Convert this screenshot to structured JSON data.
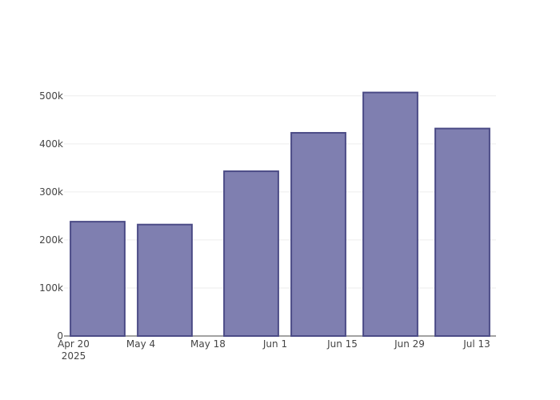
{
  "chart_data": {
    "type": "bar",
    "x": [
      "2025-04-25",
      "2025-05-09",
      "2025-05-27",
      "2025-06-10",
      "2025-06-25",
      "2025-07-10"
    ],
    "values": [
      238000,
      232000,
      343000,
      423000,
      507000,
      432000
    ],
    "color": "#7f7fb0",
    "edge_color": "#4b4b86",
    "xlim": [
      "2025-04-18",
      "2025-07-17"
    ],
    "xticks": [
      {
        "value": "2025-04-20",
        "label": "Apr 20\n2025"
      },
      {
        "value": "2025-05-04",
        "label": "May 4"
      },
      {
        "value": "2025-05-18",
        "label": "May 18"
      },
      {
        "value": "2025-06-01",
        "label": "Jun 1"
      },
      {
        "value": "2025-06-15",
        "label": "Jun 15"
      },
      {
        "value": "2025-06-29",
        "label": "Jun 29"
      },
      {
        "value": "2025-07-13",
        "label": "Jul 13"
      }
    ],
    "ylim": [
      0,
      533000
    ],
    "yticks": [
      0,
      {
        "value": 100000,
        "label": "100k"
      },
      {
        "value": 200000,
        "label": "200k"
      },
      {
        "value": 300000,
        "label": "300k"
      },
      {
        "value": 400000,
        "label": "400k"
      },
      {
        "value": 500000,
        "label": "500k"
      }
    ],
    "grid": true
  }
}
